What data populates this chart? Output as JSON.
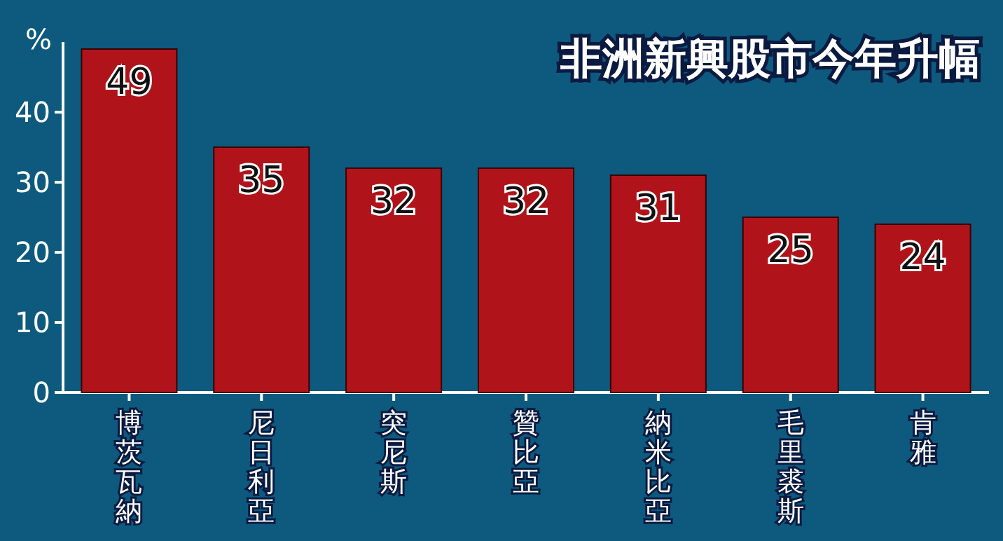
{
  "chart_data": {
    "type": "bar",
    "title": "非洲新興股市今年升幅",
    "ylabel": "%",
    "categories": [
      "博茨瓦納",
      "尼日利亞",
      "突尼斯",
      "贊比亞",
      "納米比亞",
      "毛里裘斯",
      "肯雅"
    ],
    "values": [
      49,
      35,
      32,
      32,
      31,
      25,
      24
    ],
    "color": "#b0141a",
    "ylim": [
      0,
      50
    ],
    "yticks": [
      0,
      10,
      20,
      30,
      40
    ],
    "data_labels": true
  }
}
